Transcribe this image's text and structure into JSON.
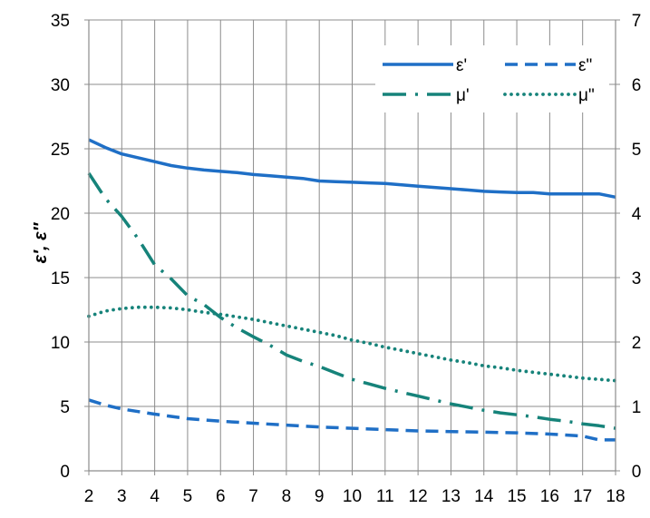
{
  "chart_data": {
    "type": "line",
    "title": "",
    "xlabel": "",
    "ylabel": "ε′, ε″",
    "y2label": "",
    "xlim": [
      2,
      18
    ],
    "ylim": [
      0,
      35
    ],
    "y2lim": [
      0,
      7
    ],
    "xticks": [
      2,
      3,
      4,
      5,
      6,
      7,
      8,
      9,
      10,
      11,
      12,
      13,
      14,
      15,
      16,
      17,
      18
    ],
    "yticks": [
      0,
      5,
      10,
      15,
      20,
      25,
      30,
      35
    ],
    "y2ticks": [
      0,
      1,
      2,
      3,
      4,
      5,
      6,
      7
    ],
    "grid": {
      "vertical": true,
      "horizontal": true
    },
    "legend_position": "top-right",
    "series": [
      {
        "name": "ε'",
        "axis": "left",
        "color": "#1f6fc6",
        "style": "solid",
        "x": [
          2,
          2.5,
          3,
          3.5,
          4,
          4.5,
          5,
          5.5,
          6,
          6.5,
          7,
          7.5,
          8,
          8.5,
          9,
          9.5,
          10,
          10.5,
          11,
          11.5,
          12,
          12.5,
          13,
          13.5,
          14,
          14.5,
          15,
          15.5,
          16,
          16.5,
          17,
          17.5,
          18
        ],
        "y": [
          25.7,
          25.1,
          24.6,
          24.3,
          24.0,
          23.7,
          23.5,
          23.35,
          23.25,
          23.15,
          23.0,
          22.9,
          22.8,
          22.7,
          22.5,
          22.45,
          22.4,
          22.35,
          22.3,
          22.2,
          22.1,
          22.0,
          21.9,
          21.8,
          21.7,
          21.65,
          21.6,
          21.6,
          21.5,
          21.5,
          21.5,
          21.5,
          21.25
        ]
      },
      {
        "name": "ε\"",
        "axis": "left",
        "color": "#1f6fc6",
        "style": "dashed",
        "x": [
          2,
          2.5,
          3,
          3.5,
          4,
          5,
          6,
          7,
          8,
          9,
          10,
          11,
          12,
          13,
          14,
          15,
          16,
          17,
          17.5,
          18
        ],
        "y": [
          5.5,
          5.1,
          4.8,
          4.6,
          4.4,
          4.05,
          3.85,
          3.7,
          3.55,
          3.4,
          3.3,
          3.2,
          3.1,
          3.05,
          3.0,
          2.95,
          2.85,
          2.7,
          2.4,
          2.4
        ]
      },
      {
        "name": "μ'",
        "axis": "right",
        "color": "#16837a",
        "style": "dashdot",
        "x": [
          2,
          2.5,
          3,
          3.5,
          4,
          4.5,
          5,
          5.5,
          6,
          6.5,
          7,
          7.5,
          8,
          8.5,
          9,
          9.5,
          10,
          10.5,
          11,
          11.5,
          12,
          12.5,
          13,
          13.5,
          14,
          14.5,
          15,
          15.5,
          16,
          16.5,
          17,
          17.5,
          18
        ],
        "y": [
          4.62,
          4.23,
          3.95,
          3.6,
          3.2,
          2.98,
          2.72,
          2.58,
          2.38,
          2.22,
          2.08,
          1.95,
          1.8,
          1.7,
          1.62,
          1.52,
          1.42,
          1.35,
          1.28,
          1.22,
          1.16,
          1.1,
          1.04,
          0.99,
          0.94,
          0.9,
          0.87,
          0.84,
          0.8,
          0.77,
          0.73,
          0.7,
          0.66
        ]
      },
      {
        "name": "μ\"",
        "axis": "right",
        "color": "#16837a",
        "style": "dotted",
        "x": [
          2,
          2.5,
          3,
          3.5,
          4,
          4.5,
          5,
          5.5,
          6,
          6.5,
          7,
          7.5,
          8,
          8.5,
          9,
          9.5,
          10,
          10.5,
          11,
          11.5,
          12,
          12.5,
          13,
          13.5,
          14,
          14.5,
          15,
          15.5,
          16,
          16.5,
          17,
          17.5,
          18
        ],
        "y": [
          2.4,
          2.48,
          2.52,
          2.54,
          2.54,
          2.53,
          2.5,
          2.46,
          2.43,
          2.39,
          2.35,
          2.3,
          2.25,
          2.2,
          2.15,
          2.1,
          2.03,
          1.98,
          1.92,
          1.87,
          1.82,
          1.77,
          1.72,
          1.68,
          1.63,
          1.6,
          1.56,
          1.53,
          1.5,
          1.47,
          1.44,
          1.42,
          1.4
        ]
      }
    ]
  }
}
